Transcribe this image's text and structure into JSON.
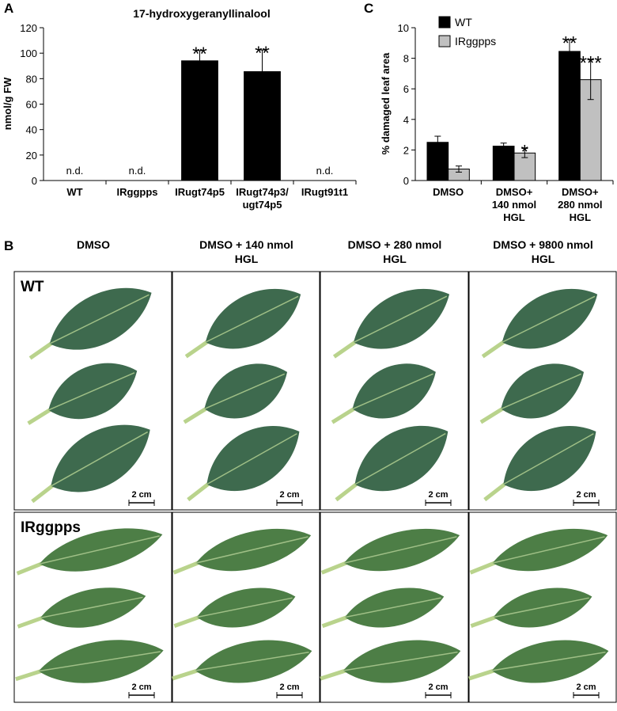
{
  "chart_data": [
    {
      "type": "bar",
      "panel_label": "A",
      "title": "17-hydroxygeranyllinalool",
      "ylabel": "nmol/g FW",
      "categories": [
        "WT",
        "IRggpps",
        "IRugt74p5",
        "IRugt74p3/\nugt74p5",
        "IRugt91t1"
      ],
      "values": [
        null,
        null,
        94,
        85.5,
        null
      ],
      "errors": [
        null,
        null,
        8,
        17,
        null
      ],
      "value_labels": [
        "n.d.",
        "n.d.",
        null,
        null,
        "n.d."
      ],
      "annotations": [
        null,
        null,
        "**",
        "**",
        null
      ],
      "color": "#000000",
      "ylim": [
        0,
        120
      ],
      "yticks": [
        0,
        20,
        40,
        60,
        80,
        100,
        120
      ]
    },
    {
      "type": "bar",
      "panel_label": "C",
      "ylabel": "% damaged leaf area",
      "categories": [
        "DMSO",
        "DMSO+\n140 nmol\nHGL",
        "DMSO+\n280 nmol\nHGL"
      ],
      "series": [
        {
          "name": "WT",
          "color": "#000000",
          "values": [
            2.5,
            2.25,
            8.45
          ],
          "errors": [
            0.4,
            0.2,
            0.75
          ],
          "annotations": [
            null,
            null,
            "**"
          ]
        },
        {
          "name": "IRggpps",
          "color": "#c0c0c0",
          "values": [
            0.75,
            1.8,
            6.6
          ],
          "errors": [
            0.2,
            0.3,
            1.3
          ],
          "annotations": [
            null,
            "*",
            "***"
          ]
        }
      ],
      "legend": "upper left",
      "ylim": [
        0,
        10
      ],
      "yticks": [
        0,
        2,
        4,
        6,
        8,
        10
      ]
    }
  ],
  "photo_panel": {
    "label": "B",
    "columns": [
      "DMSO",
      "DMSO + 140 nmol\nHGL",
      "DMSO + 280 nmol\nHGL",
      "DMSO + 9800 nmol\nHGL"
    ],
    "rows": [
      "WT",
      "IRggpps"
    ],
    "scale_bar": "2 cm"
  }
}
